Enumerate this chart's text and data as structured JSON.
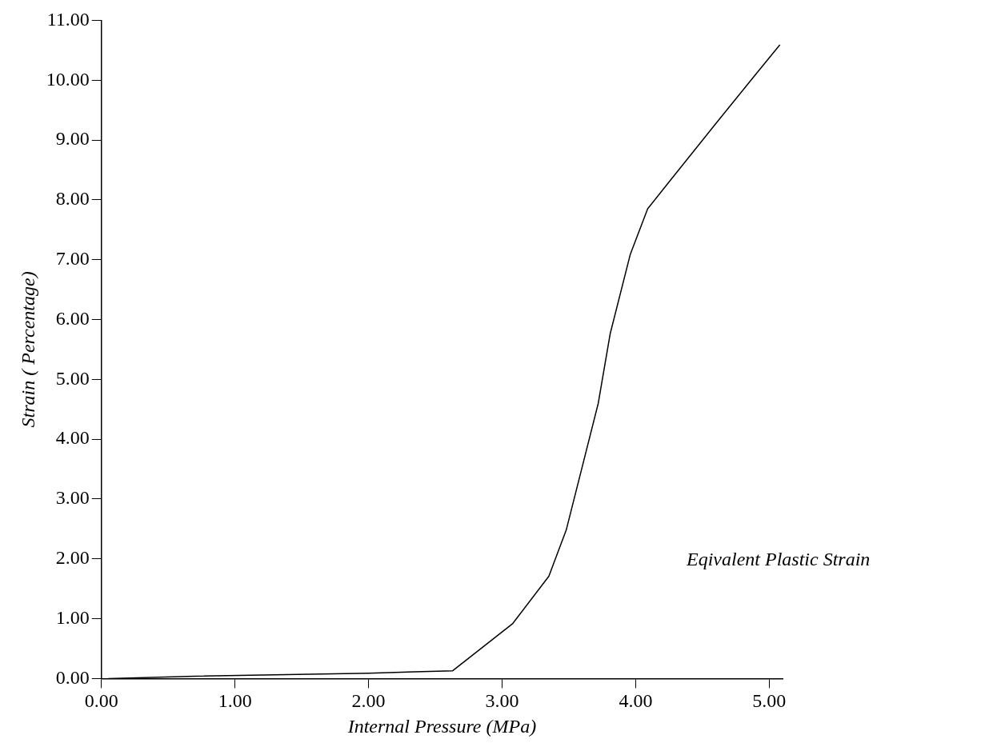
{
  "chart_data": {
    "type": "line",
    "xlabel": "Internal Pressure (MPa)",
    "ylabel": "Strain ( Percentage)",
    "x": [
      0.05,
      0.7,
      2.0,
      2.63,
      3.08,
      3.35,
      3.48,
      3.72,
      3.81,
      3.96,
      4.09,
      4.25,
      4.61,
      4.9,
      5.08
    ],
    "series": [
      {
        "name": "Eqivalent Plastic Strain",
        "color": "#000000",
        "values": [
          0.0,
          0.04,
          0.09,
          0.13,
          0.92,
          1.71,
          2.48,
          4.6,
          5.77,
          7.09,
          7.85,
          8.3,
          9.3,
          10.1,
          10.59
        ]
      }
    ],
    "xlim": [
      0,
      5.1
    ],
    "xticks": [
      {
        "value": 0,
        "label": "0.00"
      },
      {
        "value": 1,
        "label": "1.00"
      },
      {
        "value": 2,
        "label": "2.00"
      },
      {
        "value": 3,
        "label": "3.00"
      },
      {
        "value": 4,
        "label": "4.00"
      },
      {
        "value": 5,
        "label": "5.00"
      }
    ],
    "ylim": [
      0,
      11
    ],
    "yticks": [
      {
        "value": 0,
        "label": "0.00"
      },
      {
        "value": 1,
        "label": "1.00"
      },
      {
        "value": 2,
        "label": "2.00"
      },
      {
        "value": 3,
        "label": "3.00"
      },
      {
        "value": 4,
        "label": "4.00"
      },
      {
        "value": 5,
        "label": "5.00"
      },
      {
        "value": 6,
        "label": "6.00"
      },
      {
        "value": 7,
        "label": "7.00"
      },
      {
        "value": 8,
        "label": "8.00"
      },
      {
        "value": 9,
        "label": "9.00"
      },
      {
        "value": 10,
        "label": "10.00"
      },
      {
        "value": 11,
        "label": "11.00"
      }
    ],
    "grid": false,
    "legend": false,
    "marker": "none",
    "line_style": "solid"
  }
}
